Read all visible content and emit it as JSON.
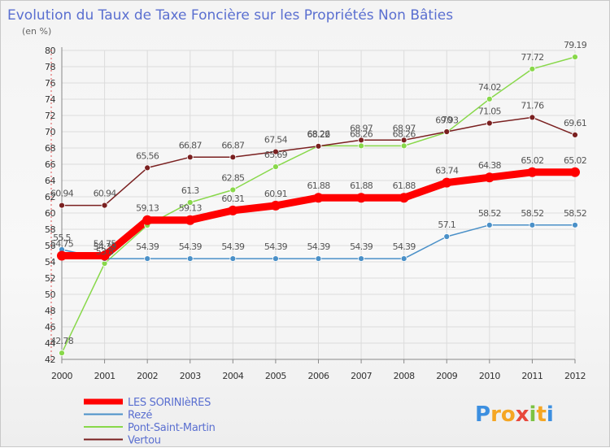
{
  "chart_data": {
    "type": "line",
    "title": "Evolution du Taux de Taxe Foncière sur les Propriétés Non Bâties",
    "subtitle": "(en %)",
    "xlabel": "",
    "ylabel": "(en %)",
    "x": [
      "2000",
      "2001",
      "2002",
      "2003",
      "2004",
      "2005",
      "2006",
      "2007",
      "2008",
      "2009",
      "2010",
      "2011",
      "2012"
    ],
    "ylim": [
      42,
      80
    ],
    "yticks": [
      42,
      44,
      46,
      48,
      50,
      52,
      54,
      56,
      58,
      60,
      62,
      64,
      66,
      68,
      70,
      72,
      74,
      76,
      78,
      80
    ],
    "grid": true,
    "legend_position": "bottom-left",
    "series": [
      {
        "name": "LES SORINIèRES",
        "color": "#ff0000",
        "values": [
          54.75,
          54.75,
          59.13,
          59.13,
          60.31,
          60.91,
          61.88,
          61.88,
          61.88,
          63.74,
          64.38,
          65.02,
          65.02
        ],
        "labels": [
          "54.75",
          "54.75",
          "59.13",
          "59.13",
          "60.31",
          "60.91",
          "61.88",
          "61.88",
          "61.88",
          "63.74",
          "64.38",
          "65.02",
          "65.02"
        ]
      },
      {
        "name": "Rezé",
        "color": "#4a90c8",
        "values": [
          55.5,
          54.39,
          54.39,
          54.39,
          54.39,
          54.39,
          54.39,
          54.39,
          54.39,
          57.1,
          58.52,
          58.52,
          58.52
        ],
        "labels": [
          "55.5",
          "54.39",
          "54.39",
          "54.39",
          "54.39",
          "54.39",
          "54.39",
          "54.39",
          "54.39",
          "57.1",
          "58.52",
          "58.52",
          "58.52"
        ]
      },
      {
        "name": "Pont-Saint-Martin",
        "color": "#88d84a",
        "values": [
          42.78,
          53.8,
          58.5,
          61.3,
          62.85,
          65.69,
          68.26,
          68.26,
          68.26,
          69.93,
          74.02,
          77.72,
          79.19
        ],
        "labels": [
          "42.78",
          "53.8",
          "",
          "61.3",
          "62.85",
          "65.69",
          "68.26",
          "68.26",
          "68.26",
          "69.93",
          "74.02",
          "77.72",
          "79.19"
        ]
      },
      {
        "name": "Vertou",
        "color": "#7a2020",
        "values": [
          60.94,
          60.94,
          65.56,
          66.87,
          66.87,
          67.54,
          68.22,
          68.97,
          68.97,
          70.0,
          71.05,
          71.76,
          69.61
        ],
        "labels": [
          "60.94",
          "60.94",
          "65.56",
          "66.87",
          "66.87",
          "67.54",
          "68.22",
          "68.97",
          "68.97",
          "70",
          "71.05",
          "71.76",
          "69.61"
        ]
      }
    ]
  },
  "brand": {
    "letters": [
      "P",
      "r",
      "o",
      "x",
      "i",
      "t",
      "i"
    ],
    "colors": [
      "#3c8fe0",
      "#f5a623",
      "#f5a623",
      "#e8483c",
      "#7cc242",
      "#f5a623",
      "#3c8fe0"
    ]
  }
}
